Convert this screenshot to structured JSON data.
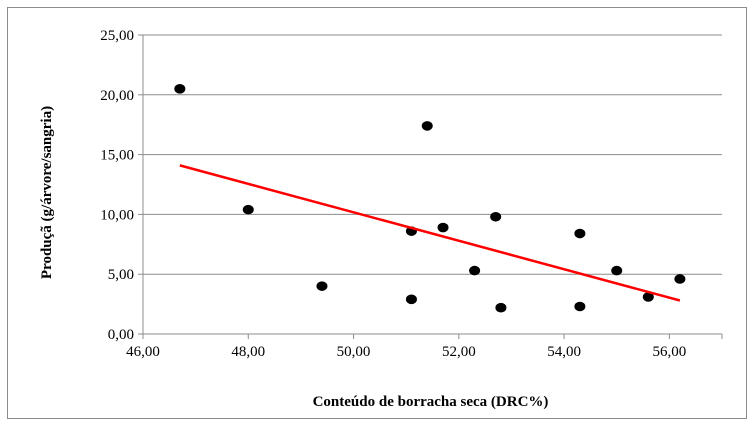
{
  "chart_data": {
    "type": "scatter",
    "title": "",
    "xlabel": "Conteúdo de borracha seca (DRC%)",
    "ylabel": "Produçã (g/árvore/sangria)",
    "xlim": [
      46,
      57
    ],
    "ylim": [
      0,
      25
    ],
    "x_ticks": [
      "46,00",
      "48,00",
      "50,00",
      "52,00",
      "54,00",
      "56,00"
    ],
    "y_ticks": [
      "0,00",
      "5,00",
      "10,00",
      "15,00",
      "20,00",
      "25,00"
    ],
    "grid": "horizontal",
    "legend": "none",
    "series": [
      {
        "points": [
          {
            "x": 46.7,
            "y": 20.5
          },
          {
            "x": 48.0,
            "y": 10.4
          },
          {
            "x": 49.4,
            "y": 4.0
          },
          {
            "x": 51.1,
            "y": 8.6
          },
          {
            "x": 51.1,
            "y": 2.9
          },
          {
            "x": 51.4,
            "y": 17.4
          },
          {
            "x": 51.7,
            "y": 8.9
          },
          {
            "x": 52.3,
            "y": 5.3
          },
          {
            "x": 52.7,
            "y": 9.8
          },
          {
            "x": 52.8,
            "y": 2.2
          },
          {
            "x": 54.3,
            "y": 8.4
          },
          {
            "x": 54.3,
            "y": 2.3
          },
          {
            "x": 55.0,
            "y": 5.3
          },
          {
            "x": 55.6,
            "y": 3.1
          },
          {
            "x": 56.2,
            "y": 4.6
          }
        ]
      }
    ],
    "trendline": {
      "x": [
        46.7,
        56.2
      ],
      "y": [
        14.1,
        2.8
      ]
    },
    "colors": {
      "points": "#000000",
      "trendline": "#ff0000",
      "grid": "#8c8c8c",
      "axis": "#8c8c8c"
    }
  }
}
